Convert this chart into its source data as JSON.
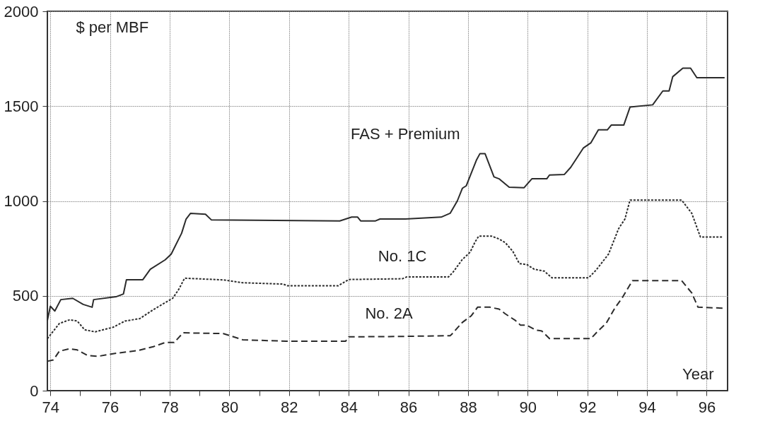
{
  "chart_data": {
    "type": "line",
    "xlabel": "Year",
    "ylabel": "$ per MBF",
    "xlim": [
      73.9,
      96.7
    ],
    "ylim": [
      0,
      2000
    ],
    "xticks": [
      74,
      {
        "value": 75,
        "label": null
      },
      76,
      {
        "value": 77,
        "label": null
      },
      78,
      {
        "value": 79,
        "label": null
      },
      80,
      {
        "value": 81,
        "label": null
      },
      82,
      {
        "value": 83,
        "label": null
      },
      84,
      {
        "value": 85,
        "label": null
      },
      86,
      {
        "value": 87,
        "label": null
      },
      88,
      {
        "value": 89,
        "label": null
      },
      90,
      {
        "value": 91,
        "label": null
      },
      92,
      {
        "value": 93,
        "label": null
      },
      94,
      {
        "value": 95,
        "label": null
      },
      96
    ],
    "yticks": [
      0,
      500,
      1000,
      1500,
      2000
    ],
    "grid": true,
    "series": [
      {
        "name": "FAS + Premium",
        "color": "#2b2b2b",
        "line_style": "solid",
        "x": [
          73.9,
          74.0,
          74.15,
          74.35,
          74.75,
          75.1,
          75.4,
          75.45,
          76.2,
          76.45,
          76.55,
          77.1,
          77.35,
          77.85,
          78.05,
          78.4,
          78.55,
          78.7,
          79.2,
          79.4,
          83.7,
          84.1,
          84.3,
          84.4,
          84.9,
          85.05,
          85.9,
          87.1,
          87.4,
          87.64,
          87.81,
          87.94,
          88.28,
          88.4,
          88.57,
          88.87,
          89.04,
          89.38,
          89.88,
          90.14,
          90.64,
          90.73,
          91.23,
          91.44,
          91.65,
          91.87,
          92.12,
          92.37,
          92.67,
          92.8,
          93.22,
          93.43,
          94.19,
          94.53,
          94.74,
          94.86,
          95.2,
          95.46,
          95.67,
          96.6
        ],
        "values": [
          370,
          445,
          420,
          480,
          487,
          455,
          440,
          480,
          495,
          510,
          585,
          585,
          640,
          690,
          720,
          830,
          905,
          935,
          930,
          900,
          895,
          915,
          915,
          895,
          895,
          905,
          905,
          915,
          935,
          1000,
          1067,
          1080,
          1215,
          1250,
          1250,
          1127,
          1117,
          1073,
          1070,
          1117,
          1117,
          1137,
          1140,
          1177,
          1227,
          1280,
          1307,
          1375,
          1375,
          1400,
          1400,
          1495,
          1507,
          1580,
          1580,
          1655,
          1700,
          1700,
          1650,
          1650
        ]
      },
      {
        "name": "No. 1C",
        "color": "#2b2b2b",
        "line_style": "dotted",
        "x": [
          73.9,
          74.3,
          74.65,
          74.9,
          75.15,
          75.5,
          76.1,
          76.5,
          77.0,
          77.45,
          78.1,
          78.3,
          78.5,
          79.8,
          80.45,
          81.8,
          81.95,
          83.65,
          84.0,
          85.35,
          85.8,
          85.95,
          87.35,
          87.5,
          87.8,
          88.07,
          88.24,
          88.36,
          88.78,
          89.04,
          89.25,
          89.5,
          89.72,
          89.97,
          90.22,
          90.56,
          90.81,
          92.04,
          92.29,
          92.71,
          93.05,
          93.26,
          93.43,
          95.16,
          95.5,
          95.79,
          96.55
        ],
        "values": [
          274,
          354,
          374,
          367,
          321,
          310,
          334,
          367,
          380,
          427,
          487,
          533,
          593,
          584,
          569,
          562,
          553,
          553,
          586,
          589,
          590,
          600,
          600,
          625,
          690,
          730,
          785,
          815,
          815,
          800,
          780,
          735,
          670,
          665,
          640,
          630,
          595,
          595,
          635,
          720,
          855,
          905,
          1005,
          1005,
          935,
          810,
          810
        ]
      },
      {
        "name": "No. 2A",
        "color": "#2b2b2b",
        "line_style": "dashed",
        "x": [
          73.9,
          74.1,
          74.3,
          74.65,
          74.9,
          75.25,
          75.6,
          76.1,
          76.95,
          77.45,
          77.85,
          78.15,
          78.45,
          79.8,
          80.45,
          81.9,
          83.9,
          84.0,
          85.35,
          87.4,
          87.47,
          87.81,
          88.11,
          88.32,
          88.74,
          89.04,
          89.25,
          89.59,
          89.76,
          89.97,
          90.26,
          90.47,
          90.73,
          92.12,
          92.33,
          92.63,
          92.92,
          93.17,
          93.51,
          95.16,
          95.5,
          95.71,
          96.55
        ],
        "values": [
          155,
          162,
          208,
          221,
          215,
          185,
          181,
          195,
          212,
          232,
          254,
          254,
          305,
          301,
          268,
          261,
          261,
          284,
          285,
          290,
          300,
          360,
          395,
          440,
          440,
          430,
          405,
          370,
          345,
          345,
          320,
          315,
          275,
          275,
          310,
          355,
          435,
          490,
          580,
          580,
          515,
          440,
          435
        ]
      }
    ]
  }
}
